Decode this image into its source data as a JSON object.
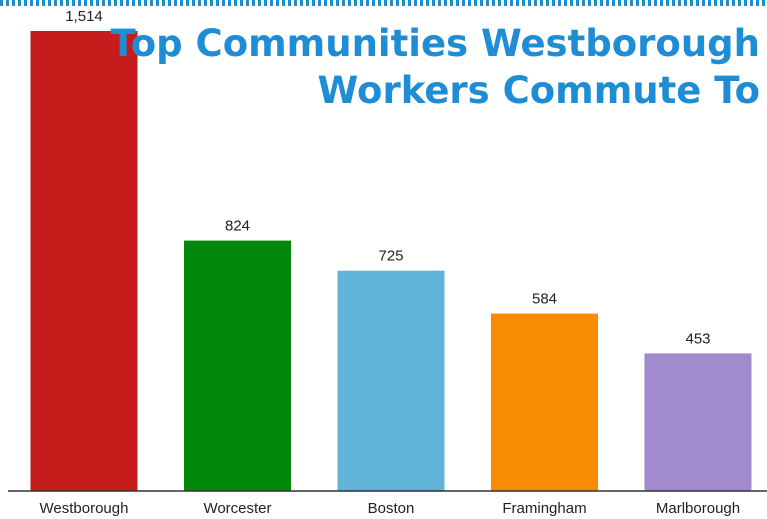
{
  "chart_data": {
    "type": "bar",
    "title_lines": [
      "Top Communities Westborough",
      "Workers Commute To"
    ],
    "categories": [
      "Westborough",
      "Worcester",
      "Boston",
      "Framingham",
      "Marlborough"
    ],
    "values": [
      1514,
      824,
      725,
      584,
      453
    ],
    "value_labels": [
      "1,514",
      "824",
      "725",
      "584",
      "453"
    ],
    "colors": [
      "#c71c1c",
      "#00880a",
      "#62b3d8",
      "#f98c00",
      "#a18bcc"
    ],
    "ylim": [
      0,
      1514
    ],
    "grid": false,
    "legend": "none",
    "xlabel": "",
    "ylabel": ""
  },
  "theme": {
    "title_color": "#1f8dd6",
    "border_color": "#1f8dd6",
    "axis_color": "#333333"
  }
}
